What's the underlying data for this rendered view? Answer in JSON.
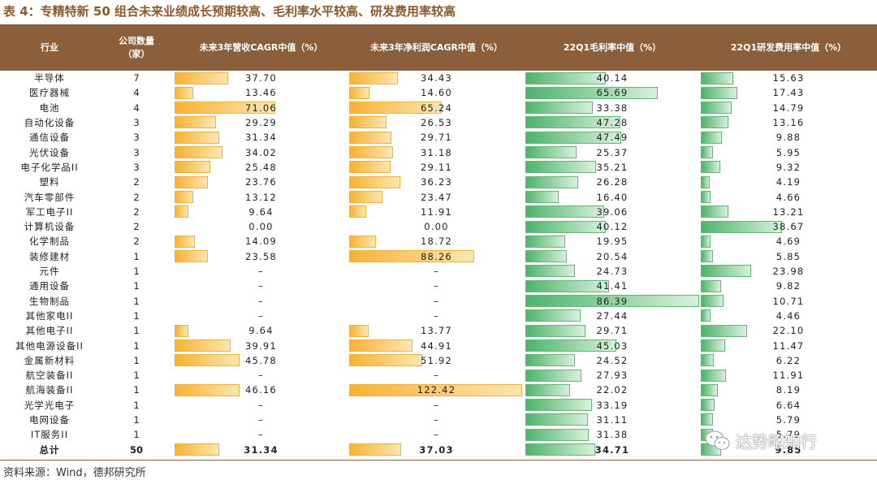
{
  "title": "表 4：专精特新 50 组合未来业绩成长预期较高、毛利率水平较高、研发费用率较高",
  "headers": [
    "行业",
    "公司数量\n（家）",
    "未来3年营收CAGR中值（%）",
    "未来3年净利润CAGR中值（%）",
    "22Q1毛利率中值（%）",
    "22Q1研发费用率中值（%）"
  ],
  "rows": [
    {
      "industry": "半导体",
      "count": "7",
      "rev": "37.70",
      "rev_v": 37.7,
      "np": "34.43",
      "np_v": 34.43,
      "gm": "40.14",
      "gm_v": 40.14,
      "rd": "15.63",
      "rd_v": 15.63
    },
    {
      "industry": "医疗器械",
      "count": "4",
      "rev": "13.46",
      "rev_v": 13.46,
      "np": "14.60",
      "np_v": 14.6,
      "gm": "65.69",
      "gm_v": 65.69,
      "rd": "17.43",
      "rd_v": 17.43
    },
    {
      "industry": "电池",
      "count": "4",
      "rev": "71.06",
      "rev_v": 71.06,
      "np": "65.24",
      "np_v": 65.24,
      "gm": "33.38",
      "gm_v": 33.38,
      "rd": "14.79",
      "rd_v": 14.79
    },
    {
      "industry": "自动化设备",
      "count": "3",
      "rev": "29.29",
      "rev_v": 29.29,
      "np": "26.53",
      "np_v": 26.53,
      "gm": "47.28",
      "gm_v": 47.28,
      "rd": "13.16",
      "rd_v": 13.16
    },
    {
      "industry": "通信设备",
      "count": "3",
      "rev": "31.34",
      "rev_v": 31.34,
      "np": "29.71",
      "np_v": 29.71,
      "gm": "47.49",
      "gm_v": 47.49,
      "rd": "9.88",
      "rd_v": 9.88
    },
    {
      "industry": "光伏设备",
      "count": "3",
      "rev": "34.02",
      "rev_v": 34.02,
      "np": "31.18",
      "np_v": 31.18,
      "gm": "25.37",
      "gm_v": 25.37,
      "rd": "5.95",
      "rd_v": 5.95
    },
    {
      "industry": "电子化学品II",
      "count": "3",
      "rev": "25.48",
      "rev_v": 25.48,
      "np": "29.11",
      "np_v": 29.11,
      "gm": "35.21",
      "gm_v": 35.21,
      "rd": "9.32",
      "rd_v": 9.32
    },
    {
      "industry": "塑料",
      "count": "2",
      "rev": "23.76",
      "rev_v": 23.76,
      "np": "36.23",
      "np_v": 36.23,
      "gm": "26.28",
      "gm_v": 26.28,
      "rd": "4.19",
      "rd_v": 4.19
    },
    {
      "industry": "汽车零部件",
      "count": "2",
      "rev": "13.12",
      "rev_v": 13.12,
      "np": "23.47",
      "np_v": 23.47,
      "gm": "16.40",
      "gm_v": 16.4,
      "rd": "4.66",
      "rd_v": 4.66
    },
    {
      "industry": "军工电子II",
      "count": "2",
      "rev": "9.64",
      "rev_v": 9.64,
      "np": "11.91",
      "np_v": 11.91,
      "gm": "39.06",
      "gm_v": 39.06,
      "rd": "13.21",
      "rd_v": 13.21
    },
    {
      "industry": "计算机设备",
      "count": "2",
      "rev": "0.00",
      "rev_v": 0,
      "np": "0.00",
      "np_v": 0,
      "gm": "40.12",
      "gm_v": 40.12,
      "rd": "38.67",
      "rd_v": 38.67
    },
    {
      "industry": "化学制品",
      "count": "2",
      "rev": "14.09",
      "rev_v": 14.09,
      "np": "18.72",
      "np_v": 18.72,
      "gm": "19.95",
      "gm_v": 19.95,
      "rd": "4.69",
      "rd_v": 4.69
    },
    {
      "industry": "装修建材",
      "count": "1",
      "rev": "23.58",
      "rev_v": 23.58,
      "np": "88.26",
      "np_v": 88.26,
      "gm": "20.54",
      "gm_v": 20.54,
      "rd": "5.85",
      "rd_v": 5.85
    },
    {
      "industry": "元件",
      "count": "1",
      "rev": "–",
      "rev_v": 0,
      "np": "–",
      "np_v": 0,
      "gm": "24.73",
      "gm_v": 24.73,
      "rd": "23.98",
      "rd_v": 23.98
    },
    {
      "industry": "通用设备",
      "count": "1",
      "rev": "–",
      "rev_v": 0,
      "np": "–",
      "np_v": 0,
      "gm": "41.41",
      "gm_v": 41.41,
      "rd": "9.82",
      "rd_v": 9.82
    },
    {
      "industry": "生物制品",
      "count": "1",
      "rev": "–",
      "rev_v": 0,
      "np": "–",
      "np_v": 0,
      "gm": "86.39",
      "gm_v": 86.39,
      "rd": "10.71",
      "rd_v": 10.71
    },
    {
      "industry": "其他家电II",
      "count": "1",
      "rev": "–",
      "rev_v": 0,
      "np": "–",
      "np_v": 0,
      "gm": "27.44",
      "gm_v": 27.44,
      "rd": "4.46",
      "rd_v": 4.46
    },
    {
      "industry": "其他电子II",
      "count": "1",
      "rev": "9.64",
      "rev_v": 9.64,
      "np": "13.77",
      "np_v": 13.77,
      "gm": "29.71",
      "gm_v": 29.71,
      "rd": "22.10",
      "rd_v": 22.1
    },
    {
      "industry": "其他电源设备II",
      "count": "1",
      "rev": "39.91",
      "rev_v": 39.91,
      "np": "44.91",
      "np_v": 44.91,
      "gm": "45.03",
      "gm_v": 45.03,
      "rd": "11.47",
      "rd_v": 11.47
    },
    {
      "industry": "金属新材料",
      "count": "1",
      "rev": "45.78",
      "rev_v": 45.78,
      "np": "51.92",
      "np_v": 51.92,
      "gm": "24.52",
      "gm_v": 24.52,
      "rd": "6.22",
      "rd_v": 6.22
    },
    {
      "industry": "航空装备II",
      "count": "1",
      "rev": "–",
      "rev_v": 0,
      "np": "–",
      "np_v": 0,
      "gm": "27.93",
      "gm_v": 27.93,
      "rd": "11.91",
      "rd_v": 11.91
    },
    {
      "industry": "航海装备II",
      "count": "1",
      "rev": "46.16",
      "rev_v": 46.16,
      "np": "122.42",
      "np_v": 122.42,
      "gm": "22.02",
      "gm_v": 22.02,
      "rd": "8.19",
      "rd_v": 8.19
    },
    {
      "industry": "光学光电子",
      "count": "1",
      "rev": "–",
      "rev_v": 0,
      "np": "–",
      "np_v": 0,
      "gm": "33.19",
      "gm_v": 33.19,
      "rd": "6.64",
      "rd_v": 6.64
    },
    {
      "industry": "电网设备",
      "count": "1",
      "rev": "–",
      "rev_v": 0,
      "np": "–",
      "np_v": 0,
      "gm": "31.11",
      "gm_v": 31.11,
      "rd": "5.79",
      "rd_v": 5.79
    },
    {
      "industry": "IT服务II",
      "count": "1",
      "rev": "–",
      "rev_v": 0,
      "np": "–",
      "np_v": 0,
      "gm": "31.38",
      "gm_v": 31.38,
      "rd": "5.79",
      "rd_v": 5.79
    }
  ],
  "total": {
    "industry": "总计",
    "count": "50",
    "rev": "31.34",
    "rev_v": 31.34,
    "np": "37.03",
    "np_v": 37.03,
    "gm": "34.71",
    "gm_v": 34.71,
    "rd": "9.85",
    "rd_v": 9.85
  },
  "source": "资料来源：Wind，德邦研究所",
  "watermark": "达势略知行",
  "colors": {
    "header": "#8b5e3c",
    "orange_bar": "#f7b233",
    "green_bar": "#4db36a",
    "title": "#8a5a2e"
  }
}
